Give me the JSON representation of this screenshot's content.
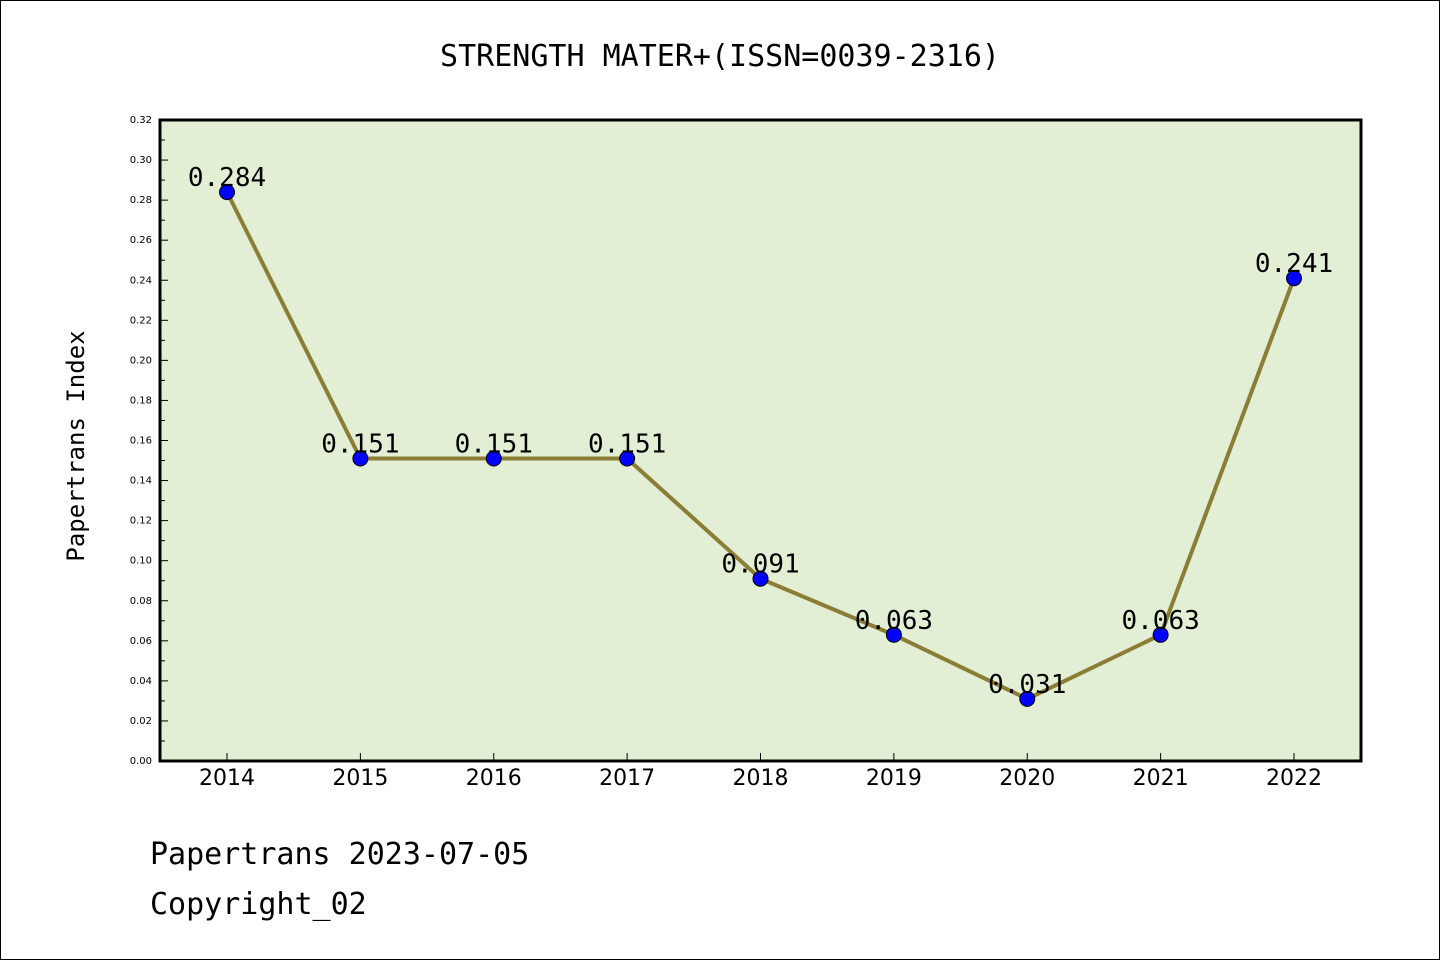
{
  "footer": {
    "line1": "Papertrans 2023-07-05",
    "line2": "Copyright_02"
  },
  "colors": {
    "plot_bg": "#e2efd4",
    "line": "#8b7d35",
    "marker": "#0000ff"
  },
  "chart_data": {
    "type": "line",
    "title": "STRENGTH MATER+(ISSN=0039-2316)",
    "xlabel": "",
    "ylabel": "Papertrans Index",
    "x": [
      "2014",
      "2015",
      "2016",
      "2017",
      "2018",
      "2019",
      "2020",
      "2021",
      "2022"
    ],
    "series": [
      {
        "values": [
          0.284,
          0.151,
          0.151,
          0.151,
          0.091,
          0.063,
          0.031,
          0.063,
          0.241
        ],
        "labels": [
          "0.284",
          "0.151",
          "0.151",
          "0.151",
          "0.091",
          "0.063",
          "0.031",
          "0.063",
          "0.241"
        ]
      }
    ],
    "ylim": [
      0,
      0.32
    ],
    "yticks": [
      "0.00",
      "0.02",
      "0.04",
      "0.06",
      "0.08",
      "0.10",
      "0.12",
      "0.14",
      "0.16",
      "0.18",
      "0.20",
      "0.22",
      "0.24",
      "0.26",
      "0.28",
      "0.30",
      "0.32"
    ],
    "grid": false,
    "legend": "none"
  }
}
